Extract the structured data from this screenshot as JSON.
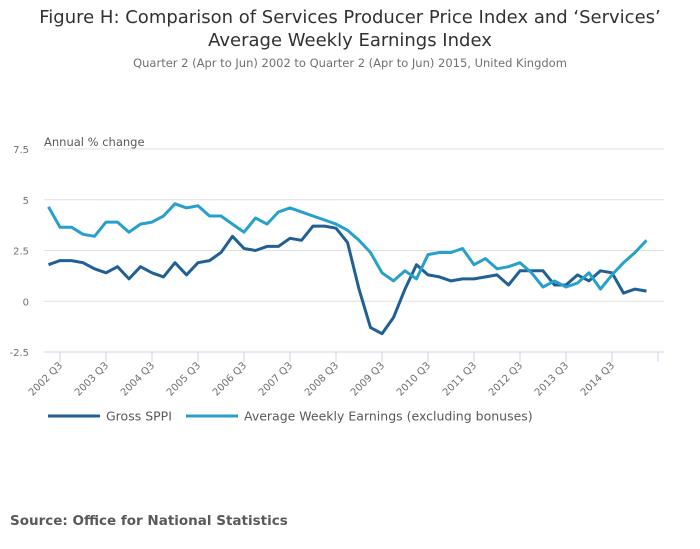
{
  "title_line1": "Figure H: Comparison of Services Producer Price Index and ‘Services’",
  "title_line2": "Average Weekly Earnings Index",
  "subtitle": "Quarter 2 (Apr to Jun) 2002 to Quarter 2 (Apr to Jun) 2015, United Kingdom",
  "source": "Source: Office for National Statistics",
  "chart_data": {
    "type": "line",
    "title": "Figure H: Comparison of Services Producer Price Index and ‘Services’ Average Weekly Earnings Index",
    "subtitle": "Quarter 2 (Apr to Jun) 2002 to Quarter 2 (Apr to Jun) 2015, United Kingdom",
    "xlabel": "",
    "ylabel": "Annual % change",
    "ylim": [
      -2.5,
      7.5
    ],
    "yticks": [
      7.5,
      5,
      2.5,
      0,
      -2.5
    ],
    "ytick_labels": [
      "7.5",
      "5",
      "2.5",
      "0",
      "-2.5"
    ],
    "grid": true,
    "legend_position": "bottom",
    "x": [
      "2002 Q2",
      "2002 Q3",
      "2002 Q4",
      "2003 Q1",
      "2003 Q2",
      "2003 Q3",
      "2003 Q4",
      "2004 Q1",
      "2004 Q2",
      "2004 Q3",
      "2004 Q4",
      "2005 Q1",
      "2005 Q2",
      "2005 Q3",
      "2005 Q4",
      "2006 Q1",
      "2006 Q2",
      "2006 Q3",
      "2006 Q4",
      "2007 Q1",
      "2007 Q2",
      "2007 Q3",
      "2007 Q4",
      "2008 Q1",
      "2008 Q2",
      "2008 Q3",
      "2008 Q4",
      "2009 Q1",
      "2009 Q2",
      "2009 Q3",
      "2009 Q4",
      "2010 Q1",
      "2010 Q2",
      "2010 Q3",
      "2010 Q4",
      "2011 Q1",
      "2011 Q2",
      "2011 Q3",
      "2011 Q4",
      "2012 Q1",
      "2012 Q2",
      "2012 Q3",
      "2012 Q4",
      "2013 Q1",
      "2013 Q2",
      "2013 Q3",
      "2013 Q4",
      "2014 Q1",
      "2014 Q2",
      "2014 Q3",
      "2014 Q4",
      "2015 Q1",
      "2015 Q2"
    ],
    "xtick_labels": [
      "2002 Q3",
      "2003 Q3",
      "2004 Q3",
      "2005 Q3",
      "2006 Q3",
      "2007 Q3",
      "2008 Q3",
      "2009 Q3",
      "2010 Q3",
      "2011 Q3",
      "2012 Q3",
      "2013 Q3",
      "2014 Q3"
    ],
    "series": [
      {
        "name": "Gross SPPI",
        "color": "#206095",
        "values": [
          1.8,
          2.0,
          2.0,
          1.9,
          1.6,
          1.4,
          1.7,
          1.1,
          1.7,
          1.4,
          1.2,
          1.9,
          1.3,
          1.9,
          2.0,
          2.4,
          3.2,
          2.6,
          2.5,
          2.7,
          2.7,
          3.1,
          3.0,
          3.7,
          3.7,
          3.6,
          2.9,
          0.6,
          -1.3,
          -1.6,
          -0.8,
          0.6,
          1.8,
          1.3,
          1.2,
          1.0,
          1.1,
          1.1,
          1.2,
          1.3,
          0.8,
          1.5,
          1.5,
          1.5,
          0.8,
          0.8,
          1.3,
          1.0,
          1.5,
          1.4,
          0.4,
          0.6,
          0.5
        ]
      },
      {
        "name": "Average Weekly Earnings (excluding bonuses)",
        "color": "#27a0cc",
        "values": [
          4.65,
          3.65,
          3.65,
          3.3,
          3.2,
          3.9,
          3.9,
          3.4,
          3.8,
          3.9,
          4.2,
          4.8,
          4.6,
          4.7,
          4.2,
          4.2,
          3.8,
          3.4,
          4.1,
          3.8,
          4.4,
          4.6,
          4.4,
          4.2,
          4.0,
          3.8,
          3.5,
          3.0,
          2.4,
          1.4,
          1.0,
          1.5,
          1.1,
          2.3,
          2.4,
          2.4,
          2.6,
          1.8,
          2.1,
          1.6,
          1.7,
          1.9,
          1.4,
          0.7,
          1.0,
          0.7,
          0.9,
          1.4,
          0.6,
          1.3,
          1.9,
          2.4,
          3.0
        ]
      }
    ]
  },
  "colors": {
    "gridline": "#e0e0e0",
    "axis": "#c8d4e3"
  }
}
